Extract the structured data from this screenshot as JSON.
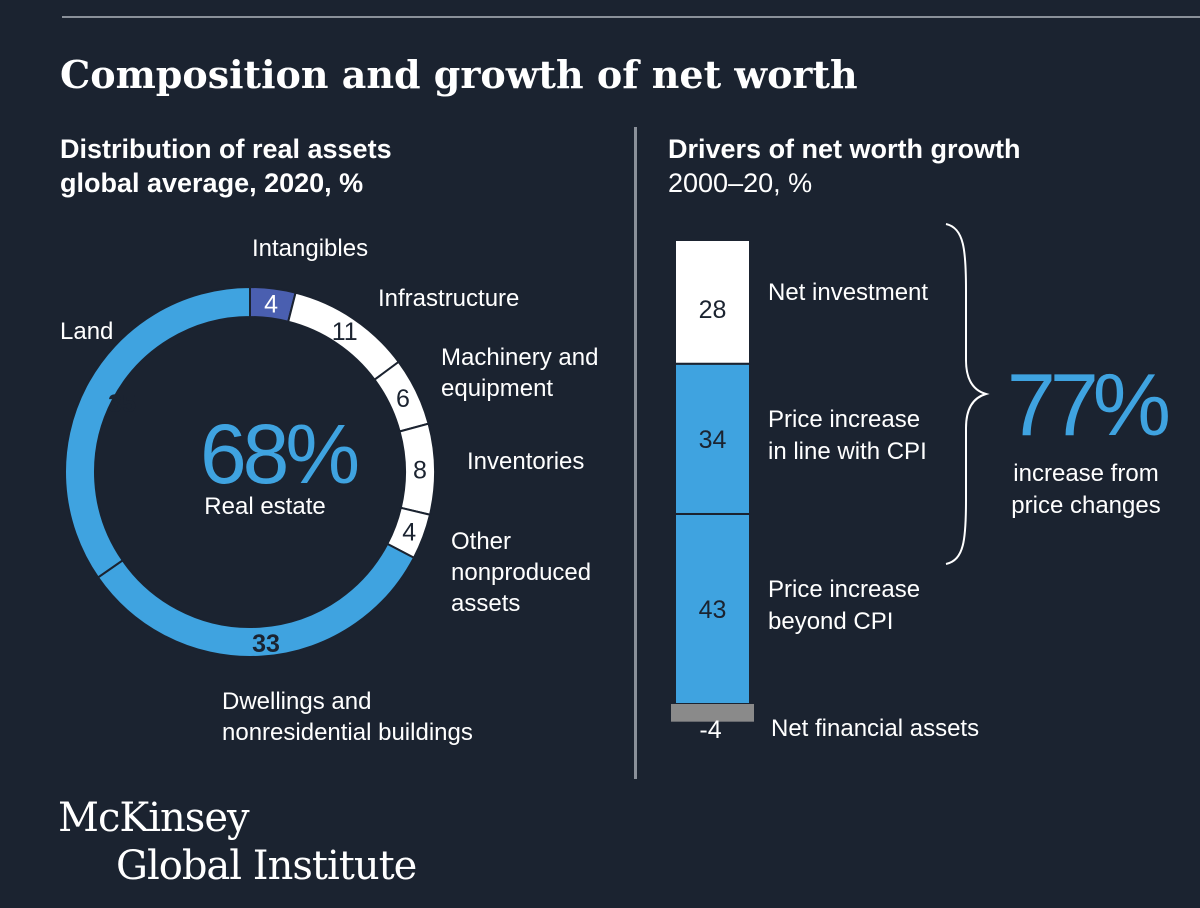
{
  "title": "Composition and growth of net worth",
  "left_panel": {
    "subtitle_line1": "Distribution of real assets",
    "subtitle_line2": "global average, 2020, %"
  },
  "right_panel": {
    "subtitle_line1": "Drivers of net worth growth",
    "subtitle_line2": "2000–20, %"
  },
  "logo": {
    "line1": "McKinsey",
    "line2": "Global Institute"
  },
  "colors": {
    "background": "#1b2330",
    "blue": "#3fa3e0",
    "dark_blue": "#4a5fb0",
    "white": "#ffffff",
    "gray": "#8a8a8a"
  },
  "chart_data": [
    {
      "type": "pie",
      "center_value": "68%",
      "center_label": "Real estate",
      "slices": [
        {
          "label": "Intangibles",
          "value": 4,
          "color": "#4a5fb0"
        },
        {
          "label": "Infrastructure",
          "value": 11,
          "color": "#ffffff"
        },
        {
          "label": "Machinery and equipment",
          "value": 6,
          "color": "#ffffff"
        },
        {
          "label": "Inventories",
          "value": 8,
          "color": "#ffffff"
        },
        {
          "label": "Other nonproduced assets",
          "value": 4,
          "color": "#ffffff"
        },
        {
          "label": "Dwellings and nonresidential buildings",
          "value": 33,
          "color": "#3fa3e0"
        },
        {
          "label": "Land",
          "value": 35,
          "color": "#3fa3e0"
        }
      ]
    },
    {
      "type": "bar",
      "stacked": true,
      "segments": [
        {
          "label": "Price increase beyond CPI",
          "value": 43,
          "color": "#3fa3e0"
        },
        {
          "label": "Price increase in line with CPI",
          "value": 34,
          "color": "#3fa3e0"
        },
        {
          "label": "Net investment",
          "value": 28,
          "color": "#ffffff"
        },
        {
          "label": "Net financial assets",
          "value": -4,
          "color": "#8a8a8a"
        }
      ],
      "bracket_value": "77%",
      "bracket_label": "increase from price changes"
    }
  ]
}
